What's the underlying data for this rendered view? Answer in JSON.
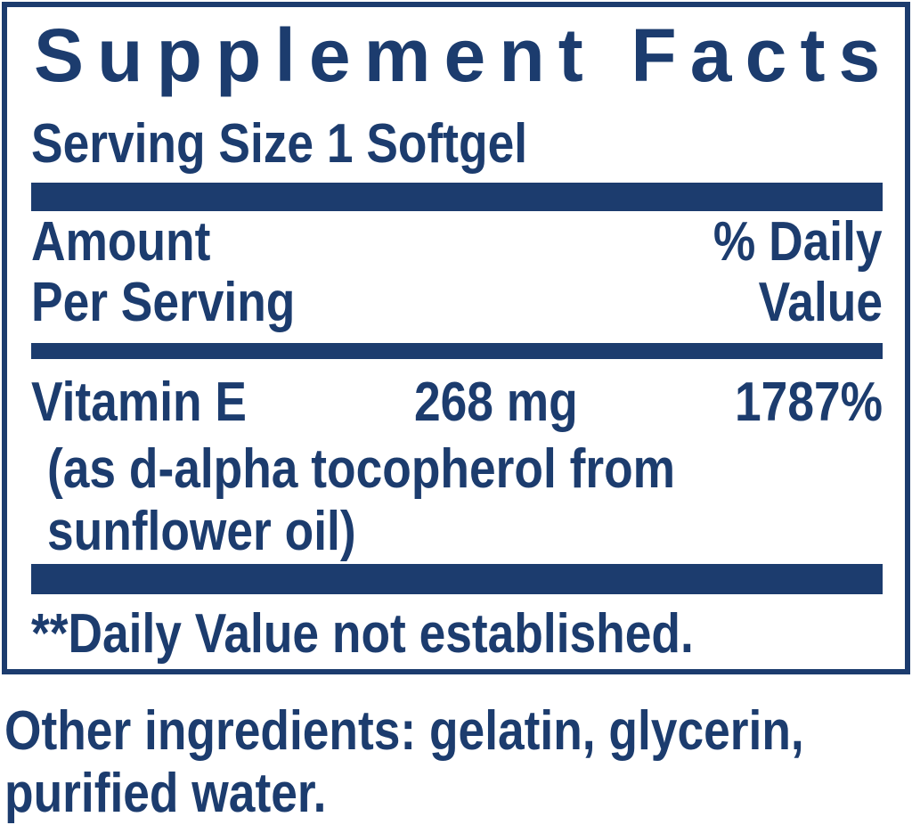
{
  "colors": {
    "navy": "#1c3c6e",
    "background": "#ffffff"
  },
  "panel": {
    "title": "Supplement Facts",
    "serving_size": "Serving Size 1 Softgel",
    "header": {
      "amount_line1": "Amount",
      "amount_line2": "Per Serving",
      "daily_value_line1": "% Daily",
      "daily_value_line2": "Value"
    },
    "nutrients": [
      {
        "name": "Vitamin E",
        "amount": "268 mg",
        "daily_value": "1787%",
        "detail_line1": "(as d-alpha tocopherol from",
        "detail_line2": "sunflower oil)"
      }
    ],
    "footnote": "**Daily Value not established."
  },
  "other_ingredients": {
    "line1": "Other ingredients: gelatin, glycerin,",
    "line2": "purified water."
  }
}
